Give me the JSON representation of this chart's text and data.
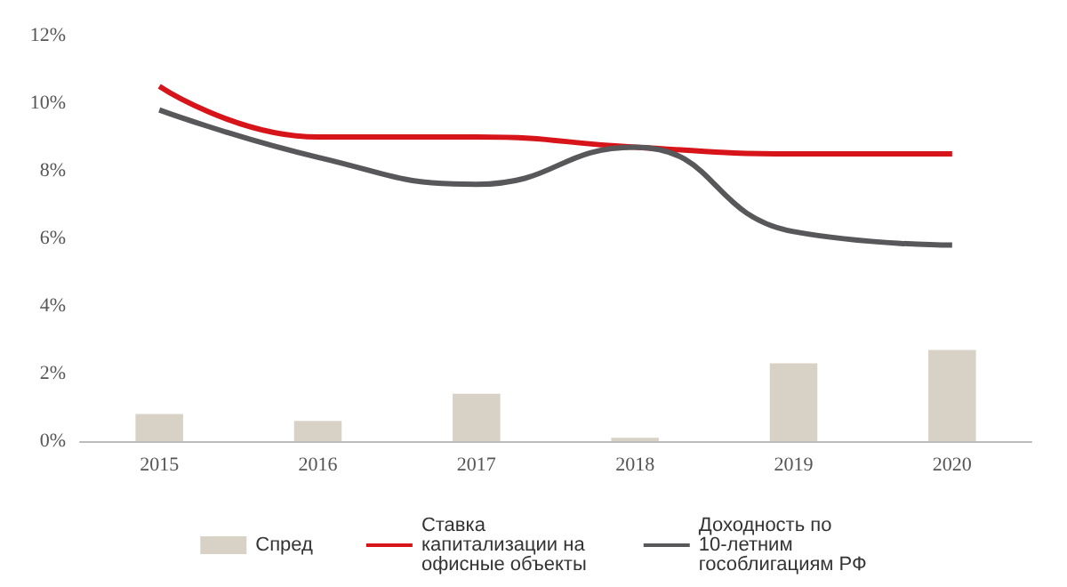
{
  "chart_data": {
    "type": "line",
    "categories": [
      "2015",
      "2016",
      "2017",
      "2018",
      "2019",
      "2020"
    ],
    "series": [
      {
        "name": "Спред",
        "type": "bar",
        "color": "#d8d1c5",
        "values": [
          0.8,
          0.6,
          1.4,
          0.1,
          2.3,
          2.7
        ]
      },
      {
        "name": "Ставка капитализации на офисные объекты",
        "color": "#d7141a",
        "values": [
          10.5,
          9.0,
          9.0,
          8.7,
          8.5,
          8.5
        ]
      },
      {
        "name": "Доходность по 10-летним гособлигациям РФ",
        "color": "#58585a",
        "values": [
          9.8,
          8.4,
          7.6,
          8.7,
          6.2,
          5.8
        ]
      }
    ],
    "ylim": [
      0,
      12
    ],
    "yticks": [
      {
        "value": 0,
        "label": "0%"
      },
      {
        "value": 2,
        "label": "2%"
      },
      {
        "value": 4,
        "label": "4%"
      },
      {
        "value": 6,
        "label": "6%"
      },
      {
        "value": 8,
        "label": "8%"
      },
      {
        "value": 10,
        "label": "10%"
      },
      {
        "value": 12,
        "label": "12%"
      }
    ],
    "grid": false,
    "legend": "bottom",
    "marker": "none",
    "line_style": "solid"
  }
}
